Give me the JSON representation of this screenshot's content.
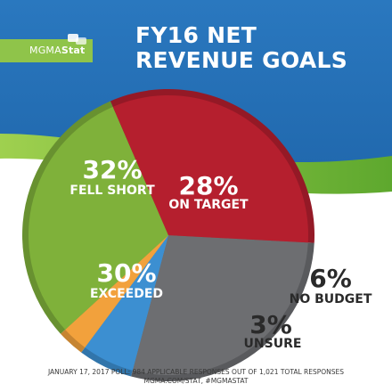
{
  "logo": {
    "brand_prefix": "MGMA",
    "brand_suffix": "Stat",
    "icon": "chat-bubbles-icon"
  },
  "header": {
    "title_line1": "FY16 NET",
    "title_line2": "REVENUE GOALS"
  },
  "footer": {
    "line1": "JANUARY 17, 2017 POLL: 984 APPLICABLE RESPONSES OUT OF 1,021 TOTAL RESPONSES",
    "line2": "MGMA.COM/STAT, #MGMASTAT"
  },
  "colors": {
    "background_blue": "#1f6fb6",
    "accent_green": "#8fc44a",
    "fell_short": "#b51f2e",
    "on_target": "#6d6e71",
    "exceeded": "#7fb13a",
    "no_budget": "#3c8fd1",
    "unsure": "#f2a13c"
  },
  "chart_data": {
    "type": "pie",
    "title": "FY16 NET REVENUE GOALS",
    "slices": [
      {
        "label": "ON TARGET",
        "value": 28,
        "display": "28%",
        "color": "#6d6e71"
      },
      {
        "label": "NO BUDGET",
        "value": 6,
        "display": "6%",
        "color": "#3c8fd1"
      },
      {
        "label": "UNSURE",
        "value": 3,
        "display": "3%",
        "color": "#f2a13c"
      },
      {
        "label": "EXCEEDED",
        "value": 30,
        "display": "30%",
        "color": "#7fb13a"
      },
      {
        "label": "FELL SHORT",
        "value": 32,
        "display": "32%",
        "color": "#b51f2e"
      }
    ]
  }
}
